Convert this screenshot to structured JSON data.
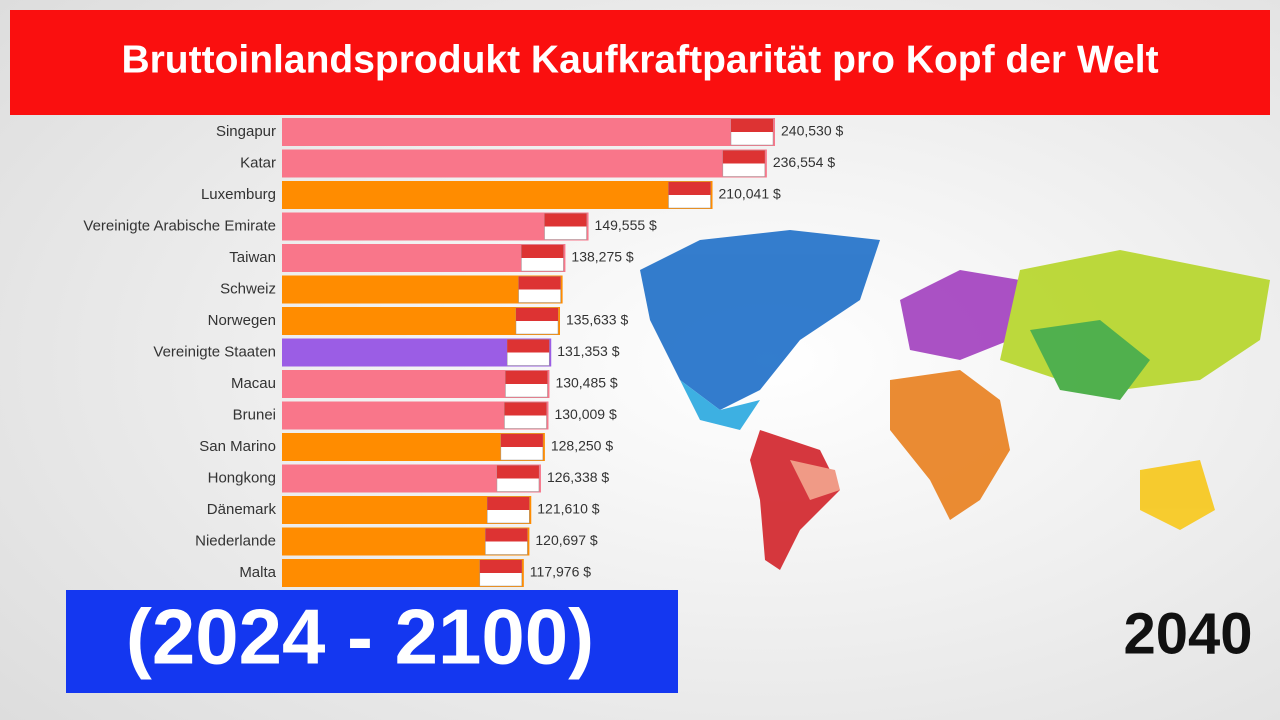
{
  "chart_data": {
    "type": "bar",
    "orientation": "horizontal",
    "title": "Bruttoinlandsprodukt Kaufkraftparität pro Kopf der Welt",
    "subtitle": "(2024 - 2100)",
    "annotation": "2040",
    "categories": [
      "Singapur",
      "Katar",
      "Luxemburg",
      "Vereinigte Arabische Emirate",
      "Taiwan",
      "Schweiz",
      "Norwegen",
      "Vereinigte Staaten",
      "Macau",
      "Brunei",
      "San Marino",
      "Hongkong",
      "Dänemark",
      "Niederlande",
      "Malta"
    ],
    "values": [
      240530,
      236554,
      210041,
      149555,
      138275,
      136900,
      135633,
      131353,
      130485,
      130009,
      128250,
      126338,
      121610,
      120697,
      117976
    ],
    "value_labels": [
      "240,530 $",
      "236,554 $",
      "210,041 $",
      "149,555 $",
      "138,275 $",
      null,
      "135,633 $",
      "131,353 $",
      "130,485 $",
      "130,009 $",
      "128,250 $",
      "126,338 $",
      "121,610 $",
      "120,697 $",
      "117,976 $"
    ],
    "colors": [
      "#f9768a",
      "#f9768a",
      "#ff8c00",
      "#f9768a",
      "#f9768a",
      "#ff8c00",
      "#ff8c00",
      "#9b5de5",
      "#f9768a",
      "#f9768a",
      "#ff8c00",
      "#f9768a",
      "#ff8c00",
      "#ff8c00",
      "#ff8c00"
    ]
  }
}
